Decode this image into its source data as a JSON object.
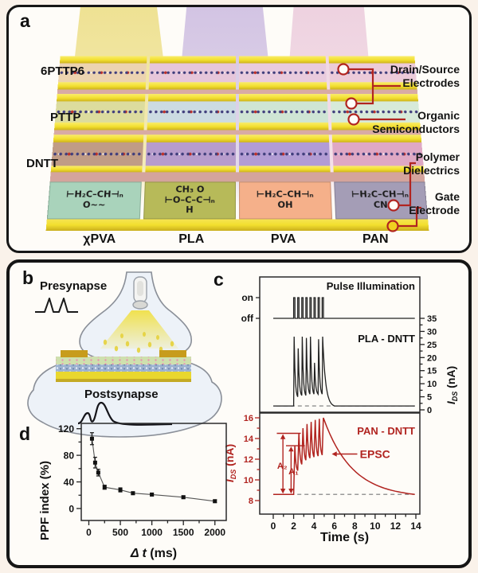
{
  "figure": {
    "bg": "#faf2ea",
    "accent_red": "#b12420"
  },
  "panel_a": {
    "label": "a",
    "row_labels": [
      "6PTTP6",
      "PTTP",
      "DNTT"
    ],
    "polymer_columns": [
      {
        "name": "χPVA",
        "color": "#a9d3bb",
        "formula": [
          "",
          "⊢H₂C–CH⊣ₙ",
          "O∼∼"
        ]
      },
      {
        "name": "PLA",
        "color": "#b7ba59",
        "formula": [
          "CH₃ O",
          "⊢O–C–C⊣ₙ",
          "H"
        ]
      },
      {
        "name": "PVA",
        "color": "#f5b08a",
        "formula": [
          "",
          "⊢H₂C–CH⊣ₙ",
          "OH"
        ]
      },
      {
        "name": "PAN",
        "color": "#a49db6",
        "formula": [
          "",
          "⊢H₂C–CH⊣ₙ",
          "CN"
        ]
      }
    ],
    "callouts": [
      {
        "lines": [
          "Drain/Source",
          "Electrodes"
        ]
      },
      {
        "lines": [
          "Organic",
          "Semiconductors"
        ]
      },
      {
        "lines": [
          "Polymer",
          "Dielectrics"
        ]
      },
      {
        "lines": [
          "Gate",
          "Electrode"
        ]
      }
    ]
  },
  "panel_b": {
    "label": "b",
    "presynapse": "Presynapse",
    "postsynapse": "Postsynapse"
  },
  "panel_c": {
    "label": "c"
  },
  "panel_d": {
    "label": "d"
  },
  "chart_data": [
    {
      "id": "pulse-illumination",
      "type": "line",
      "title": "Pulse Illumination",
      "y_labels": [
        "on",
        "off"
      ],
      "x_range_s": [
        0,
        14
      ],
      "pulse_times_s": [
        2.0,
        2.4,
        2.8,
        3.2,
        3.6,
        4.0,
        4.4,
        4.8
      ],
      "pulse_width_s": 0.08
    },
    {
      "id": "pla-dntt",
      "type": "line",
      "label": "PLA - DNTT",
      "color": "#2b2b2b",
      "ylabel_parts": [
        "I",
        "DS",
        " (nA)"
      ],
      "ylim": [
        0,
        35
      ],
      "y_ticks": [
        0,
        5,
        10,
        15,
        20,
        25,
        30,
        35
      ],
      "baseline_nA": 1.5,
      "spike_times_s": [
        2.0,
        2.4,
        2.8,
        3.2,
        3.6,
        4.0,
        4.4,
        4.8
      ],
      "peaks_nA": [
        28,
        23.5,
        28,
        27.5,
        28,
        18,
        27,
        28
      ],
      "valleys_nA": [
        5,
        5.5,
        5.5,
        6,
        6,
        6,
        6
      ],
      "decay_end_nA": 1.5
    },
    {
      "id": "pan-dntt",
      "type": "line",
      "label": "PAN - DNTT",
      "color": "#b12420",
      "ylabel_parts": [
        "I",
        "DS",
        " (nA)"
      ],
      "ylim_labeled": [
        8,
        16
      ],
      "y_ticks": [
        8,
        10,
        12,
        14,
        16
      ],
      "baseline_nA": 8.6,
      "spike_times_s": [
        2.0,
        2.4,
        2.8,
        3.2,
        3.6,
        4.0,
        4.4,
        4.8
      ],
      "peaks_nA": [
        13.3,
        14.5,
        15.0,
        15.4,
        15.6,
        15.8,
        15.9,
        16.0
      ],
      "valleys_nA": [
        10.9,
        11.5,
        11.9,
        12.1,
        12.2,
        12.3,
        12.4
      ],
      "decay_end_s": 14,
      "decay_end_nA": 8.6,
      "annotations": {
        "epsc": "EPSC",
        "a1": "A₁",
        "a2": "A₂"
      },
      "xlabel": "Time (s)",
      "x_ticks": [
        0,
        2,
        4,
        6,
        8,
        10,
        12,
        14
      ]
    },
    {
      "id": "ppf",
      "type": "scatter",
      "ylabel": "PPF index (%)",
      "xlabel_parts": [
        "Δ t",
        " (ms)"
      ],
      "x_ms": [
        50,
        100,
        150,
        250,
        500,
        700,
        1000,
        1500,
        2000
      ],
      "y_pct": [
        105,
        69,
        54,
        32,
        28,
        23,
        21,
        17,
        11
      ],
      "yerr_pct": [
        9,
        8,
        5,
        3,
        3,
        2,
        2,
        2,
        2
      ],
      "x_ticks": [
        0,
        500,
        1000,
        1500,
        2000
      ],
      "y_ticks": [
        0,
        40,
        80,
        120
      ],
      "xlim": [
        -120,
        2180
      ],
      "ylim": [
        -18,
        128
      ]
    }
  ]
}
